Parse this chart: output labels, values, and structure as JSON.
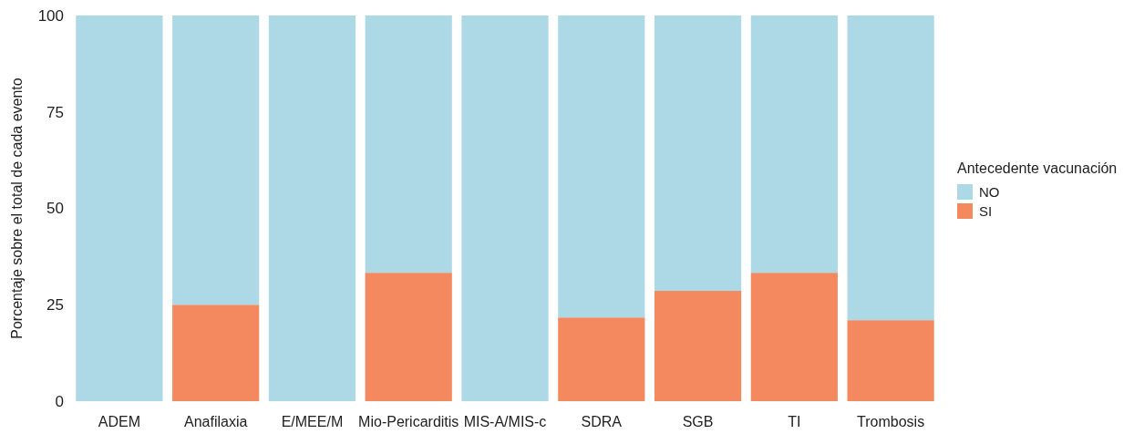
{
  "chart_data": {
    "type": "bar",
    "stacked": true,
    "ylabel": "Porcentaje sobre el total de cada evento",
    "legend_title": "Antecedente vacunación",
    "legend": "right",
    "categories": [
      "ADEM",
      "Anafilaxia",
      "E/MEE/M",
      "Mio-Pericarditis",
      "MIS-A/MIS-c",
      "SDRA",
      "SGB",
      "TI",
      "Trombosis"
    ],
    "series": [
      {
        "name": "SI",
        "color": "#f4895f",
        "values": [
          0,
          25,
          0,
          33.3,
          0,
          21.7,
          28.6,
          33.3,
          21
        ]
      },
      {
        "name": "NO",
        "color": "#add8e6",
        "values": [
          100,
          75,
          100,
          66.7,
          100,
          78.3,
          71.4,
          66.7,
          79
        ]
      }
    ],
    "ylim": [
      0,
      100
    ],
    "yticks": [
      0,
      25,
      50,
      75,
      100
    ]
  }
}
